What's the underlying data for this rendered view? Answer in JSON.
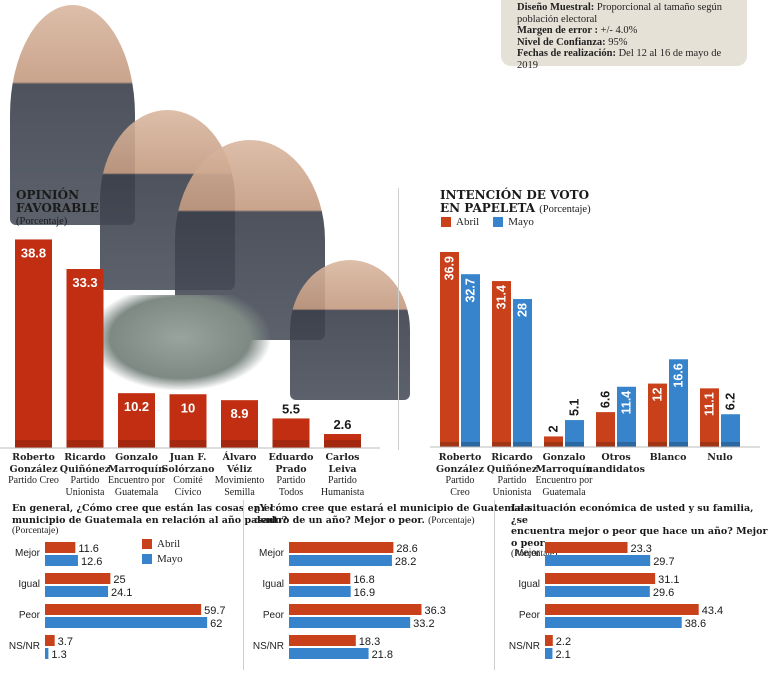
{
  "colors": {
    "abril": "#c8411a",
    "mayo": "#3784cc",
    "bar_single": "#c12e12"
  },
  "info_box": {
    "lines": [
      {
        "label": "Diseño Muestral:",
        "value": "Proporcional al tamaño según"
      },
      {
        "label": "",
        "value": "población electoral"
      },
      {
        "label": "Margen de error :",
        "value": "+/- 4.0%"
      },
      {
        "label": "Nivel de Confianza:",
        "value": "95%"
      },
      {
        "label": "Fechas de realización:",
        "value": "Del 12 al 16 de mayo de 2019"
      }
    ]
  },
  "legend": {
    "abril": "Abril",
    "mayo": "Mayo"
  },
  "chart_data": [
    {
      "id": "opinion_favorable",
      "type": "bar",
      "title": "OPINIÓN FAVORABLE",
      "title_line1": "OPINIÓN",
      "title_line2": "FAVORABLE",
      "subtitle": "(Porcentaje)",
      "categories": [
        {
          "name1": "Roberto",
          "name2": "González",
          "party1": "Partido Creo",
          "party2": ""
        },
        {
          "name1": "Ricardo",
          "name2": "Quiñónez",
          "party1": "Partido",
          "party2": "Unionista"
        },
        {
          "name1": "Gonzalo",
          "name2": "Marroquín",
          "party1": "Encuentro por",
          "party2": "Guatemala"
        },
        {
          "name1": "Juan F.",
          "name2": "Solórzano",
          "party1": "Comité",
          "party2": "Cívico"
        },
        {
          "name1": "Álvaro",
          "name2": "Véliz",
          "party1": "Movimiento",
          "party2": "Semilla"
        },
        {
          "name1": "Eduardo",
          "name2": "Prado",
          "party1": "Partido",
          "party2": "Todos"
        },
        {
          "name1": "Carlos",
          "name2": "Leiva",
          "party1": "Partido",
          "party2": "Humanista"
        }
      ],
      "values": [
        38.8,
        33.3,
        10.2,
        10,
        8.9,
        5.5,
        2.6
      ],
      "labels": [
        "38.8",
        "33.3",
        "10.2",
        "10",
        "8.9",
        "5.5",
        "2.6"
      ],
      "ylim": [
        0,
        40
      ]
    },
    {
      "id": "intencion_voto",
      "type": "bar",
      "title": "INTENCIÓN DE VOTO EN PAPELETA",
      "title_line1": "INTENCIÓN DE VOTO",
      "title_line2": "EN PAPELETA",
      "subtitle": "(Porcentaje)",
      "categories": [
        {
          "name1": "Roberto",
          "name2": "González",
          "party1": "Partido",
          "party2": "Creo"
        },
        {
          "name1": "Ricardo",
          "name2": "Quiñónez",
          "party1": "Partido",
          "party2": "Unionista"
        },
        {
          "name1": "Gonzalo",
          "name2": "Marroquín",
          "party1": "Encuentro por",
          "party2": "Guatemala"
        },
        {
          "name1": "Otros",
          "name2": "candidatos",
          "party1": "",
          "party2": ""
        },
        {
          "name1": "Blanco",
          "name2": "",
          "party1": "",
          "party2": ""
        },
        {
          "name1": "Nulo",
          "name2": "",
          "party1": "",
          "party2": ""
        }
      ],
      "series": [
        {
          "name": "Abril",
          "values": [
            36.9,
            31.4,
            2,
            6.6,
            12,
            11.1
          ],
          "labels": [
            "36.9",
            "31.4",
            "2",
            "6.6",
            "12",
            "11.1"
          ]
        },
        {
          "name": "Mayo",
          "values": [
            32.7,
            28,
            5.1,
            11.4,
            16.6,
            6.2
          ],
          "labels": [
            "32.7",
            "28",
            "5.1",
            "11.4",
            "16.6",
            "6.2"
          ]
        }
      ],
      "ylim": [
        0,
        40
      ]
    },
    {
      "id": "q1",
      "type": "bar",
      "orientation": "horizontal",
      "title": "En general, ¿Cómo cree que están las cosas en el municipio de Guatemala en relación al año pasado?",
      "title_line1": "En general, ¿Cómo cree que están las cosas en el",
      "title_line2": "municipio de Guatemala en relación al año pasado?",
      "subtitle": "(Porcentaje)",
      "categories": [
        "Mejor",
        "Igual",
        "Peor",
        "NS/NR"
      ],
      "series": [
        {
          "name": "Abril",
          "values": [
            11.6,
            25,
            59.7,
            3.7
          ],
          "labels": [
            "11.6",
            "25",
            "59.7",
            "3.7"
          ]
        },
        {
          "name": "Mayo",
          "values": [
            12.6,
            24.1,
            62,
            1.3
          ],
          "labels": [
            "12.6",
            "24.1",
            "62",
            "1.3"
          ]
        }
      ],
      "xlim": [
        0,
        65
      ]
    },
    {
      "id": "q2",
      "type": "bar",
      "orientation": "horizontal",
      "title": "¿Y cómo cree que estará el municipio de Guatemala dentro de un año? Mejor o peor.",
      "title_line1": "¿Y cómo cree que estará el municipio de Guatemala",
      "title_line2": "dentro de un año? Mejor o peor.",
      "subtitle": "(Porcentaje)",
      "categories": [
        "Mejor",
        "Igual",
        "Peor",
        "NS/NR"
      ],
      "series": [
        {
          "name": "Abril",
          "values": [
            28.6,
            16.8,
            36.3,
            18.3
          ],
          "labels": [
            "28.6",
            "16.8",
            "36.3",
            "18.3"
          ]
        },
        {
          "name": "Mayo",
          "values": [
            28.2,
            16.9,
            33.2,
            21.8
          ],
          "labels": [
            "28.2",
            "16.9",
            "33.2",
            "21.8"
          ]
        }
      ],
      "xlim": [
        0,
        40
      ]
    },
    {
      "id": "q3",
      "type": "bar",
      "orientation": "horizontal",
      "title": "La situación económica de usted y su familia, ¿se encuentra mejor o peor que hace un año? Mejor o peor",
      "title_line1": "La situación económica de usted y su familia, ¿se",
      "title_line2": "encuentra mejor o peor que hace un año? Mejor o peor",
      "subtitle": "(Porcentaje)",
      "categories": [
        "Mejor",
        "Igual",
        "Peor",
        "NS/NR"
      ],
      "series": [
        {
          "name": "Abril",
          "values": [
            23.3,
            31.1,
            43.4,
            2.2
          ],
          "labels": [
            "23.3",
            "31.1",
            "43.4",
            "2.2"
          ]
        },
        {
          "name": "Mayo",
          "values": [
            29.7,
            29.6,
            38.6,
            2.1
          ],
          "labels": [
            "29.7",
            "29.6",
            "38.6",
            "2.1"
          ]
        }
      ],
      "xlim": [
        0,
        48
      ]
    }
  ]
}
